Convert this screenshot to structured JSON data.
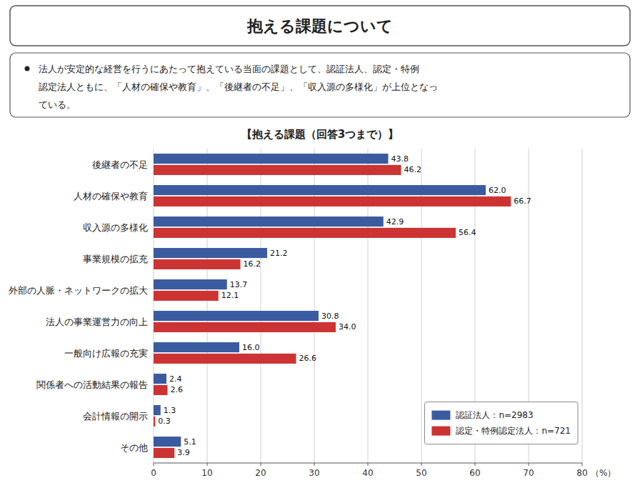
{
  "chart_data": {
    "type": "bar",
    "orientation": "horizontal",
    "title": "抱える課題について",
    "annotations": [
      "法人が安定的な経営を行うにあたって抱えている当面の課題として、認証法人、認定・特例",
      "認定法人ともに、「人材の確保や教育」、「後継者の不足」、「収入源の多様化」が上位となっ",
      "ている。"
    ],
    "subtitle": "【抱える課題（回答3つまで）】",
    "xlabel": "（%）",
    "categories": [
      "後継者の不足",
      "人材の確保や教育",
      "収入源の多様化",
      "事業規模の拡充",
      "外部の人脈・ネットワークの拡大",
      "法人の事業運営力の向上",
      "一般向け広報の充実",
      "関係者への活動結果の報告",
      "会計情報の開示",
      "その他"
    ],
    "series": [
      {
        "name": "認証法人：n=2983",
        "color": "#3A5BA0",
        "values": [
          43.8,
          62.0,
          42.9,
          21.2,
          13.7,
          30.8,
          16.0,
          2.4,
          1.3,
          5.1
        ],
        "value_labels": [
          "43.8",
          "62.0",
          "42.9",
          "21.2",
          "13.7",
          "30.8",
          "16.0",
          "2.4",
          "1.3",
          "5.1"
        ]
      },
      {
        "name": "認定・特例認定法人：n=721",
        "color": "#CC3333",
        "values": [
          46.2,
          66.7,
          56.4,
          16.2,
          12.1,
          34.0,
          26.6,
          2.6,
          0.3,
          3.9
        ],
        "value_labels": [
          "46.2",
          "66.7",
          "56.4",
          "16.2",
          "12.1",
          "34.0",
          "26.6",
          "2.6",
          "0.3",
          "3.9"
        ]
      }
    ],
    "xlim": [
      0,
      80
    ],
    "xticks": [
      0,
      10,
      20,
      30,
      40,
      50,
      60,
      70,
      80
    ],
    "grid": true,
    "legend": "lower right",
    "data_labels": true
  }
}
